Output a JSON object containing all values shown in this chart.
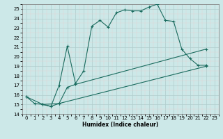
{
  "xlabel": "Humidex (Indice chaleur)",
  "ylabel": "",
  "xlim": [
    -0.5,
    23.5
  ],
  "ylim": [
    14,
    25.5
  ],
  "yticks": [
    14,
    15,
    16,
    17,
    18,
    19,
    20,
    21,
    22,
    23,
    24,
    25
  ],
  "xticks": [
    0,
    1,
    2,
    3,
    4,
    5,
    6,
    7,
    8,
    9,
    10,
    11,
    12,
    13,
    14,
    15,
    16,
    17,
    18,
    19,
    20,
    21,
    22,
    23
  ],
  "bg_color": "#cce8e8",
  "grid_major_color": "#b0cccc",
  "grid_minor_color": "#d8ecec",
  "line_color": "#1a6b5e",
  "line1_x": [
    0,
    1,
    2,
    3,
    4,
    5,
    6,
    7,
    8,
    9,
    10,
    11,
    12,
    13,
    14,
    15,
    16,
    17,
    18,
    19,
    20,
    21,
    22
  ],
  "line1_y": [
    15.8,
    15.1,
    15.0,
    14.8,
    17.0,
    21.1,
    17.2,
    18.5,
    23.2,
    23.8,
    23.1,
    24.6,
    24.9,
    24.8,
    24.8,
    25.2,
    25.5,
    23.8,
    23.7,
    20.8,
    19.8,
    19.1,
    19.1
  ],
  "line2_x": [
    0,
    2,
    3,
    4,
    5,
    6,
    22
  ],
  "line2_y": [
    15.8,
    15.0,
    14.8,
    15.1,
    16.8,
    17.1,
    20.8
  ],
  "line3_x": [
    2,
    4,
    22
  ],
  "line3_y": [
    15.0,
    15.1,
    19.0
  ]
}
